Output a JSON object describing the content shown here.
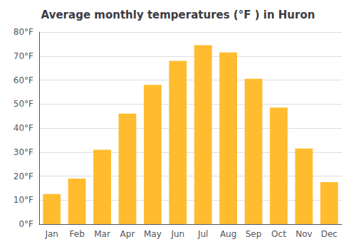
{
  "chart_data": {
    "type": "bar",
    "title": "Average monthly temperatures (°F ) in Huron",
    "categories": [
      "Jan",
      "Feb",
      "Mar",
      "Apr",
      "May",
      "Jun",
      "Jul",
      "Aug",
      "Sep",
      "Oct",
      "Nov",
      "Dec"
    ],
    "values": [
      12.5,
      19.0,
      31.0,
      46.0,
      58.0,
      68.0,
      74.5,
      71.5,
      60.5,
      48.5,
      31.5,
      17.5
    ],
    "color": "#FFBC2E",
    "ylim": [
      0,
      80
    ],
    "yticks": [
      {
        "value": 0,
        "label": "0°F"
      },
      {
        "value": 10,
        "label": "10°F"
      },
      {
        "value": 20,
        "label": "20°F"
      },
      {
        "value": 30,
        "label": "30°F"
      },
      {
        "value": 40,
        "label": "40°F"
      },
      {
        "value": 50,
        "label": "50°F"
      },
      {
        "value": 60,
        "label": "60°F"
      },
      {
        "value": 70,
        "label": "70°F"
      },
      {
        "value": 80,
        "label": "80°F"
      }
    ],
    "grid": true
  }
}
